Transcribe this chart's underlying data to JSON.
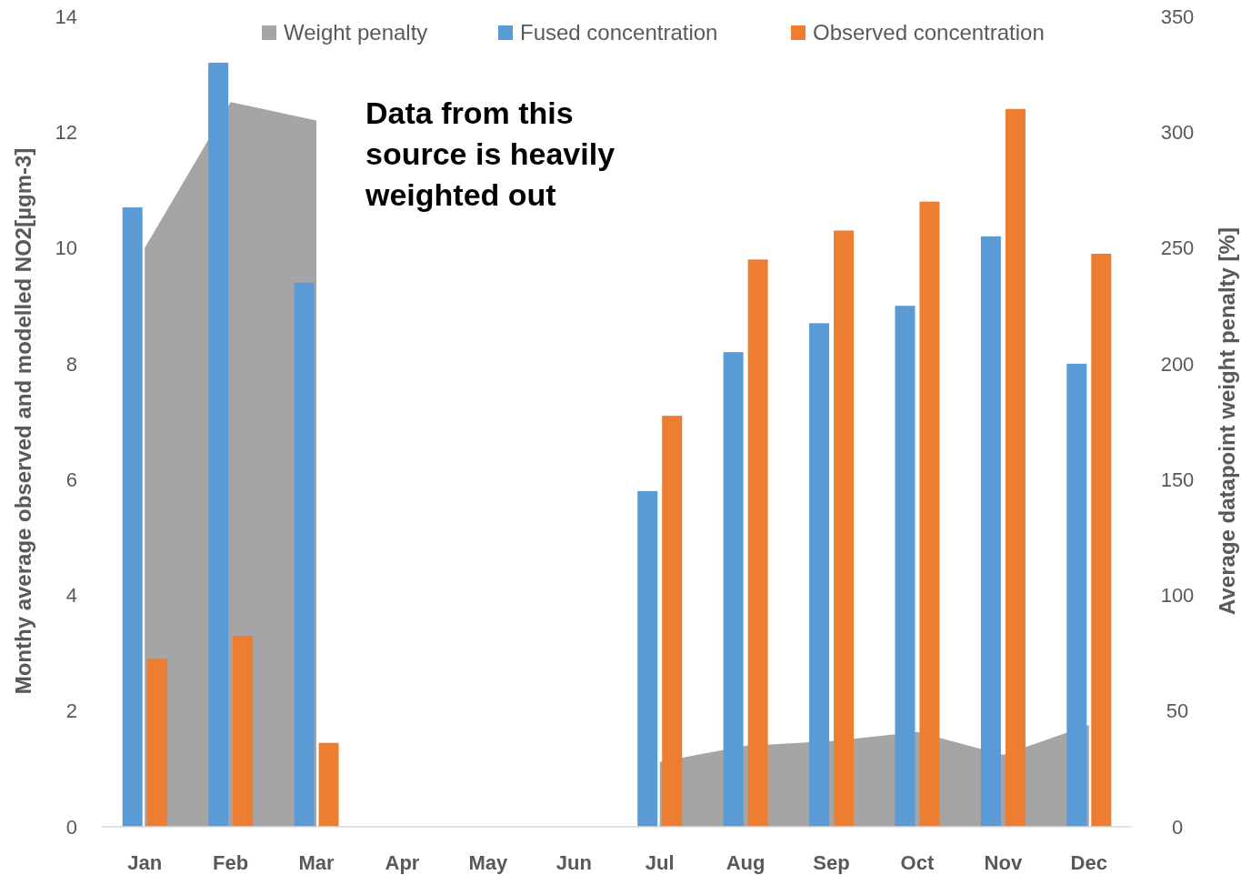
{
  "chart_data": {
    "type": "bar",
    "categories": [
      "Jan",
      "Feb",
      "Mar",
      "Apr",
      "May",
      "Jun",
      "Jul",
      "Aug",
      "Sep",
      "Oct",
      "Nov",
      "Dec"
    ],
    "ylabel": "Monthy average observed and modelled NO2[µgm-3]",
    "y2label": "Average datapoint weight penalty [%]",
    "ylim": [
      0,
      14
    ],
    "yticks": [
      0,
      2,
      4,
      6,
      8,
      10,
      12,
      14
    ],
    "y2lim": [
      0,
      350
    ],
    "y2ticks": [
      0,
      50,
      100,
      150,
      200,
      250,
      300,
      350
    ],
    "legend": "top",
    "grid": false,
    "annotations": [
      "Data from this source is heavily weighted out"
    ],
    "series": [
      {
        "name": "Weight penalty",
        "type": "area",
        "axis": "y2",
        "color": "#a5a5a5",
        "values": [
          250,
          313,
          305,
          null,
          null,
          null,
          28,
          35,
          37,
          41,
          31,
          44
        ]
      },
      {
        "name": "Fused concentration",
        "color": "#5b9bd5",
        "values": [
          10.7,
          13.2,
          9.4,
          null,
          null,
          null,
          5.8,
          8.2,
          8.7,
          9.0,
          10.2,
          8.0
        ]
      },
      {
        "name": "Observed concentration",
        "color": "#ed7d31",
        "values": [
          2.9,
          3.3,
          1.45,
          null,
          null,
          null,
          7.1,
          9.8,
          10.3,
          10.8,
          12.4,
          9.9
        ]
      }
    ]
  }
}
